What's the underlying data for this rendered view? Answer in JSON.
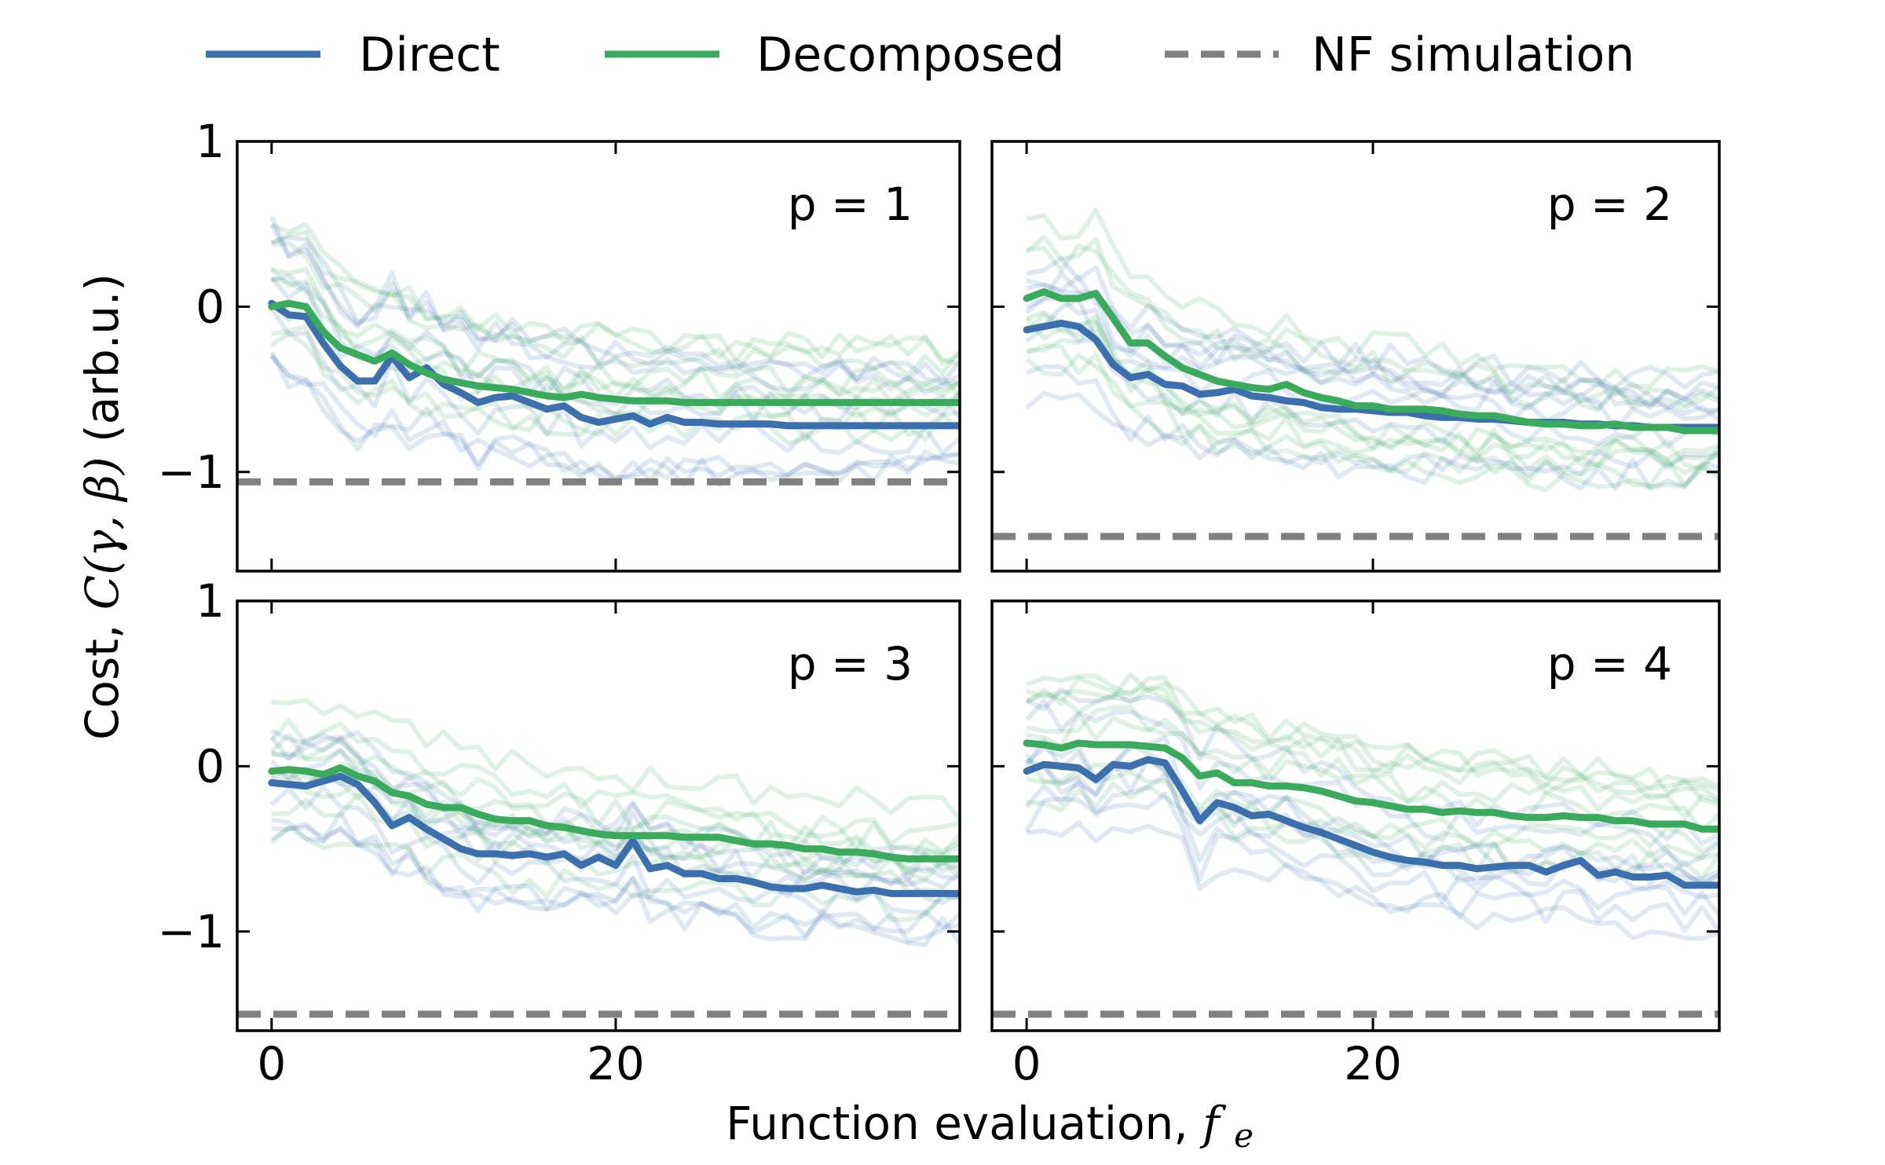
{
  "colors": {
    "direct": "#3c6fae",
    "decomposed": "#3aaa5c",
    "nf_simulation": "#808080"
  },
  "legend": [
    {
      "label": "Direct",
      "color": "#3c6fae",
      "style": "solid"
    },
    {
      "label": "Decomposed",
      "color": "#3aaa5c",
      "style": "solid"
    },
    {
      "label": "NF simulation",
      "color": "#808080",
      "style": "dashed"
    }
  ],
  "xlabel_text": "Function evaluation,",
  "xlabel_symbol": "f",
  "xlabel_subscript": "e",
  "ylabel_prefix": "Cost,",
  "ylabel_math": "C(γ, β)",
  "ylabel_unit": "(arb.u.)",
  "chart_data": [
    {
      "type": "line",
      "panel_label": "p = 1",
      "xlim": [
        -2,
        40
      ],
      "ylim": [
        -1.6,
        1.0
      ],
      "xticks": [
        0,
        20
      ],
      "yticks": [
        1,
        0,
        -1
      ],
      "ytick_labels": [
        "1",
        "0",
        "−1"
      ],
      "nf_simulation": -1.06,
      "series": [
        {
          "name": "Direct",
          "x": [
            0,
            1,
            2,
            3,
            4,
            5,
            6,
            7,
            8,
            9,
            10,
            11,
            12,
            13,
            14,
            15,
            16,
            17,
            18,
            19,
            20,
            21,
            22,
            23,
            24,
            25,
            26,
            27,
            28,
            29,
            30,
            31,
            32,
            33,
            34,
            35,
            36,
            37,
            38,
            39,
            40
          ],
          "values": [
            0.02,
            -0.05,
            -0.06,
            -0.22,
            -0.36,
            -0.45,
            -0.45,
            -0.3,
            -0.43,
            -0.37,
            -0.47,
            -0.52,
            -0.58,
            -0.55,
            -0.54,
            -0.58,
            -0.62,
            -0.6,
            -0.67,
            -0.7,
            -0.68,
            -0.66,
            -0.71,
            -0.67,
            -0.7,
            -0.7,
            -0.71,
            -0.71,
            -0.71,
            -0.71,
            -0.72,
            -0.72,
            -0.72,
            -0.72,
            -0.72,
            -0.72,
            -0.72,
            -0.72,
            -0.72,
            -0.72,
            -0.72
          ]
        },
        {
          "name": "Decomposed",
          "x": [
            0,
            1,
            2,
            3,
            4,
            5,
            6,
            7,
            8,
            9,
            10,
            11,
            12,
            13,
            14,
            15,
            16,
            17,
            18,
            19,
            20,
            21,
            22,
            23,
            24,
            25,
            26,
            27,
            28,
            29,
            30,
            31,
            32,
            33,
            34,
            35,
            36,
            37,
            38,
            39,
            40
          ],
          "values": [
            0.0,
            0.02,
            0.0,
            -0.15,
            -0.25,
            -0.29,
            -0.33,
            -0.28,
            -0.35,
            -0.4,
            -0.44,
            -0.46,
            -0.48,
            -0.49,
            -0.5,
            -0.52,
            -0.54,
            -0.55,
            -0.53,
            -0.55,
            -0.56,
            -0.57,
            -0.57,
            -0.57,
            -0.58,
            -0.58,
            -0.58,
            -0.58,
            -0.58,
            -0.58,
            -0.58,
            -0.58,
            -0.58,
            -0.58,
            -0.58,
            -0.58,
            -0.58,
            -0.58,
            -0.58,
            -0.58,
            -0.58
          ]
        }
      ]
    },
    {
      "type": "line",
      "panel_label": "p = 2",
      "xlim": [
        -2,
        40
      ],
      "ylim": [
        -1.6,
        1.0
      ],
      "xticks": [
        0,
        20
      ],
      "yticks": [
        1,
        0,
        -1
      ],
      "ytick_labels": [
        "1",
        "0",
        "−1"
      ],
      "nf_simulation": -1.39,
      "series": [
        {
          "name": "Direct",
          "x": [
            0,
            1,
            2,
            3,
            4,
            5,
            6,
            7,
            8,
            9,
            10,
            11,
            12,
            13,
            14,
            15,
            16,
            17,
            18,
            19,
            20,
            21,
            22,
            23,
            24,
            25,
            26,
            27,
            28,
            29,
            30,
            31,
            32,
            33,
            34,
            35,
            36,
            37,
            38,
            39,
            40
          ],
          "values": [
            -0.14,
            -0.12,
            -0.1,
            -0.12,
            -0.2,
            -0.35,
            -0.43,
            -0.41,
            -0.47,
            -0.48,
            -0.53,
            -0.52,
            -0.5,
            -0.54,
            -0.55,
            -0.57,
            -0.58,
            -0.61,
            -0.62,
            -0.62,
            -0.63,
            -0.64,
            -0.64,
            -0.66,
            -0.67,
            -0.67,
            -0.68,
            -0.68,
            -0.69,
            -0.7,
            -0.7,
            -0.7,
            -0.71,
            -0.71,
            -0.72,
            -0.72,
            -0.73,
            -0.73,
            -0.73,
            -0.73,
            -0.73
          ]
        },
        {
          "name": "Decomposed",
          "x": [
            0,
            1,
            2,
            3,
            4,
            5,
            6,
            7,
            8,
            9,
            10,
            11,
            12,
            13,
            14,
            15,
            16,
            17,
            18,
            19,
            20,
            21,
            22,
            23,
            24,
            25,
            26,
            27,
            28,
            29,
            30,
            31,
            32,
            33,
            34,
            35,
            36,
            37,
            38,
            39,
            40
          ],
          "values": [
            0.05,
            0.09,
            0.05,
            0.05,
            0.08,
            -0.07,
            -0.22,
            -0.22,
            -0.3,
            -0.37,
            -0.41,
            -0.45,
            -0.47,
            -0.49,
            -0.5,
            -0.47,
            -0.52,
            -0.55,
            -0.57,
            -0.6,
            -0.6,
            -0.62,
            -0.62,
            -0.62,
            -0.63,
            -0.65,
            -0.66,
            -0.66,
            -0.68,
            -0.7,
            -0.71,
            -0.71,
            -0.72,
            -0.72,
            -0.71,
            -0.73,
            -0.73,
            -0.73,
            -0.75,
            -0.75,
            -0.75
          ]
        }
      ]
    },
    {
      "type": "line",
      "panel_label": "p = 3",
      "xlim": [
        -2,
        40
      ],
      "ylim": [
        -1.6,
        1.0
      ],
      "xticks": [
        0,
        20
      ],
      "yticks": [
        1,
        0,
        -1
      ],
      "ytick_labels": [
        "1",
        "0",
        "−1"
      ],
      "nf_simulation": -1.5,
      "series": [
        {
          "name": "Direct",
          "x": [
            0,
            1,
            2,
            3,
            4,
            5,
            6,
            7,
            8,
            9,
            10,
            11,
            12,
            13,
            14,
            15,
            16,
            17,
            18,
            19,
            20,
            21,
            22,
            23,
            24,
            25,
            26,
            27,
            28,
            29,
            30,
            31,
            32,
            33,
            34,
            35,
            36,
            37,
            38,
            39,
            40
          ],
          "values": [
            -0.1,
            -0.11,
            -0.12,
            -0.09,
            -0.06,
            -0.11,
            -0.22,
            -0.36,
            -0.31,
            -0.38,
            -0.44,
            -0.5,
            -0.53,
            -0.53,
            -0.54,
            -0.53,
            -0.55,
            -0.53,
            -0.6,
            -0.55,
            -0.6,
            -0.45,
            -0.62,
            -0.6,
            -0.65,
            -0.65,
            -0.68,
            -0.68,
            -0.7,
            -0.73,
            -0.74,
            -0.74,
            -0.72,
            -0.74,
            -0.76,
            -0.75,
            -0.77,
            -0.77,
            -0.77,
            -0.77,
            -0.77
          ]
        },
        {
          "name": "Decomposed",
          "x": [
            0,
            1,
            2,
            3,
            4,
            5,
            6,
            7,
            8,
            9,
            10,
            11,
            12,
            13,
            14,
            15,
            16,
            17,
            18,
            19,
            20,
            21,
            22,
            23,
            24,
            25,
            26,
            27,
            28,
            29,
            30,
            31,
            32,
            33,
            34,
            35,
            36,
            37,
            38,
            39,
            40
          ],
          "values": [
            -0.03,
            -0.02,
            -0.03,
            -0.05,
            -0.01,
            -0.06,
            -0.09,
            -0.16,
            -0.18,
            -0.23,
            -0.25,
            -0.25,
            -0.29,
            -0.32,
            -0.33,
            -0.33,
            -0.36,
            -0.37,
            -0.39,
            -0.41,
            -0.42,
            -0.42,
            -0.42,
            -0.42,
            -0.43,
            -0.43,
            -0.43,
            -0.45,
            -0.47,
            -0.47,
            -0.48,
            -0.5,
            -0.5,
            -0.52,
            -0.52,
            -0.53,
            -0.55,
            -0.56,
            -0.56,
            -0.56,
            -0.56
          ]
        }
      ]
    },
    {
      "type": "line",
      "panel_label": "p = 4",
      "xlim": [
        -2,
        40
      ],
      "ylim": [
        -1.6,
        1.0
      ],
      "xticks": [
        0,
        20
      ],
      "yticks": [
        1,
        0,
        -1
      ],
      "ytick_labels": [
        "1",
        "0",
        "−1"
      ],
      "nf_simulation": -1.5,
      "series": [
        {
          "name": "Direct",
          "x": [
            0,
            1,
            2,
            3,
            4,
            5,
            6,
            7,
            8,
            9,
            10,
            11,
            12,
            13,
            14,
            15,
            16,
            17,
            18,
            19,
            20,
            21,
            22,
            23,
            24,
            25,
            26,
            27,
            28,
            29,
            30,
            31,
            32,
            33,
            34,
            35,
            36,
            37,
            38,
            39,
            40
          ],
          "values": [
            -0.03,
            0.01,
            0.0,
            -0.01,
            -0.08,
            0.01,
            0.0,
            0.04,
            0.02,
            -0.15,
            -0.33,
            -0.22,
            -0.25,
            -0.3,
            -0.29,
            -0.33,
            -0.37,
            -0.4,
            -0.44,
            -0.48,
            -0.52,
            -0.55,
            -0.57,
            -0.58,
            -0.6,
            -0.6,
            -0.62,
            -0.61,
            -0.6,
            -0.6,
            -0.64,
            -0.6,
            -0.57,
            -0.66,
            -0.64,
            -0.67,
            -0.67,
            -0.66,
            -0.72,
            -0.72,
            -0.72
          ]
        },
        {
          "name": "Decomposed",
          "x": [
            0,
            1,
            2,
            3,
            4,
            5,
            6,
            7,
            8,
            9,
            10,
            11,
            12,
            13,
            14,
            15,
            16,
            17,
            18,
            19,
            20,
            21,
            22,
            23,
            24,
            25,
            26,
            27,
            28,
            29,
            30,
            31,
            32,
            33,
            34,
            35,
            36,
            37,
            38,
            39,
            40
          ],
          "values": [
            0.14,
            0.13,
            0.11,
            0.14,
            0.13,
            0.13,
            0.13,
            0.12,
            0.11,
            0.05,
            -0.06,
            -0.04,
            -0.1,
            -0.1,
            -0.12,
            -0.12,
            -0.13,
            -0.15,
            -0.18,
            -0.21,
            -0.22,
            -0.24,
            -0.26,
            -0.26,
            -0.28,
            -0.27,
            -0.28,
            -0.28,
            -0.3,
            -0.31,
            -0.31,
            -0.3,
            -0.31,
            -0.31,
            -0.33,
            -0.33,
            -0.35,
            -0.35,
            -0.35,
            -0.38,
            -0.38
          ]
        }
      ]
    }
  ]
}
